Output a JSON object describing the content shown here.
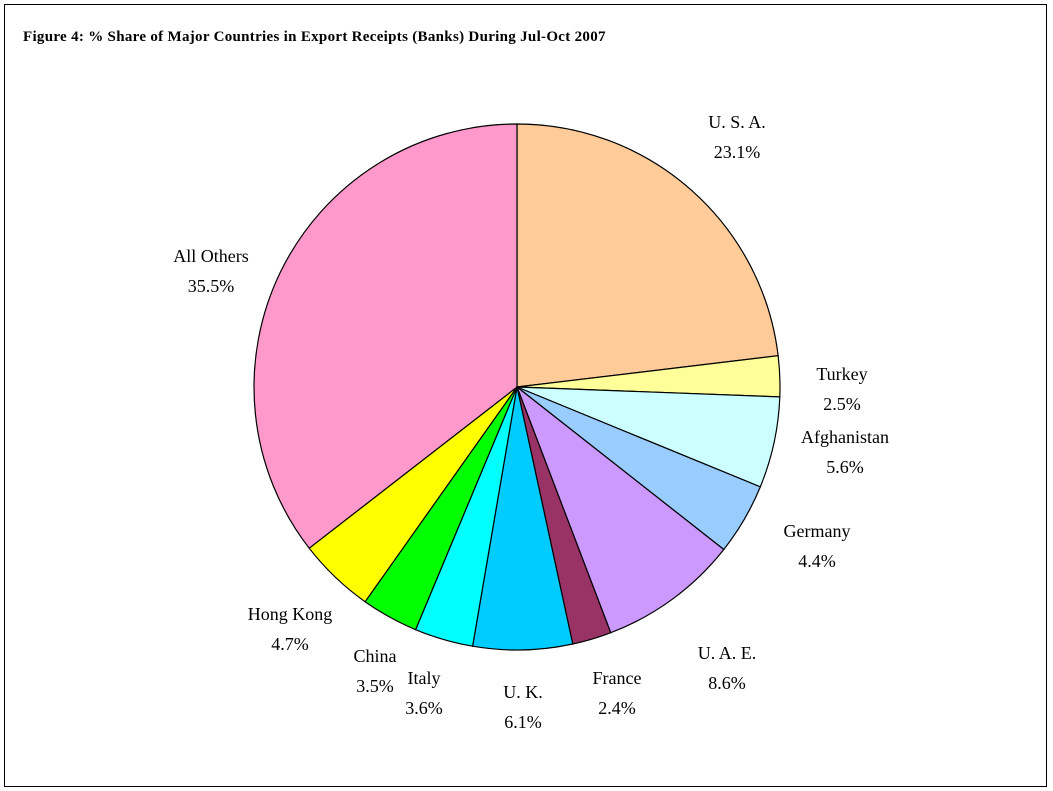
{
  "chart_data": {
    "type": "pie",
    "title": "Figure 4: % Share of Major Countries in Export Receipts (Banks) During Jul-Oct 2007",
    "start_angle_deg": 90,
    "direction": "clockwise",
    "slices": [
      {
        "label": "U. S. A.",
        "value": 23.1,
        "value_label": "23.1%",
        "color": "#FFCC99"
      },
      {
        "label": "Turkey",
        "value": 2.5,
        "value_label": "2.5%",
        "color": "#FFFF99"
      },
      {
        "label": "Afghanistan",
        "value": 5.6,
        "value_label": "5.6%",
        "color": "#CCFFFF"
      },
      {
        "label": "Germany",
        "value": 4.4,
        "value_label": "4.4%",
        "color": "#99CCFF"
      },
      {
        "label": "U. A. E.",
        "value": 8.6,
        "value_label": "8.6%",
        "color": "#CC99FF"
      },
      {
        "label": "France",
        "value": 2.4,
        "value_label": "2.4%",
        "color": "#993366"
      },
      {
        "label": "U. K.",
        "value": 6.1,
        "value_label": "6.1%",
        "color": "#00CCFF"
      },
      {
        "label": "Italy",
        "value": 3.6,
        "value_label": "3.6%",
        "color": "#00FFFF"
      },
      {
        "label": "China",
        "value": 3.5,
        "value_label": "3.5%",
        "color": "#00FF00"
      },
      {
        "label": "Hong Kong",
        "value": 4.7,
        "value_label": "4.7%",
        "color": "#FFFF00"
      },
      {
        "label": "All Others",
        "value": 35.5,
        "value_label": "35.5%",
        "color": "#FF99CC"
      }
    ]
  }
}
